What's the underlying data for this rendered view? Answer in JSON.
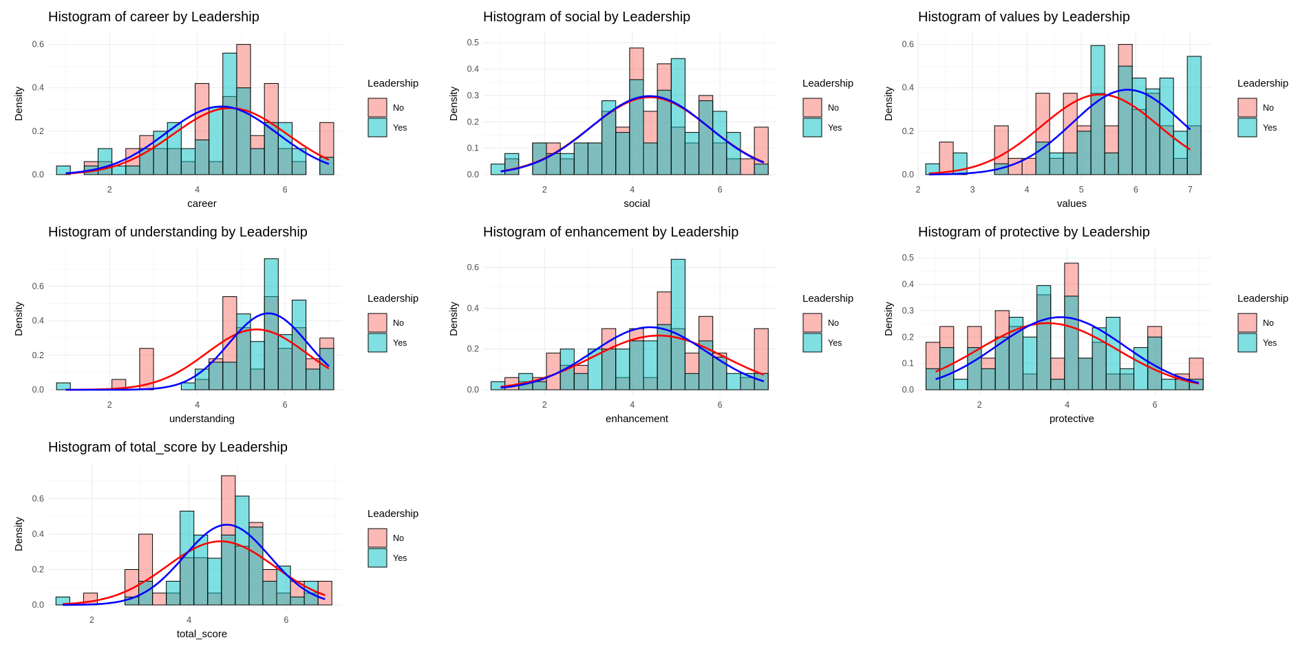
{
  "colors": {
    "no_fill": "#F8766D",
    "yes_fill": "#00BFC4",
    "fill_alpha": 0.5,
    "no_curve": "#FF0000",
    "yes_curve": "#0000FF"
  },
  "legend": {
    "title": "Leadership",
    "items": [
      "No",
      "Yes"
    ]
  },
  "chart_data": [
    {
      "type": "bar",
      "title": "Histogram of career by Leadership",
      "xlabel": "career",
      "ylabel": "Density",
      "xlim": [
        0.6,
        7.3
      ],
      "ylim": [
        0,
        0.62
      ],
      "xticks": [
        2,
        4,
        6
      ],
      "yticks": [
        0.0,
        0.2,
        0.4,
        0.6
      ],
      "bin_start": 0.79,
      "bin_width": 0.316,
      "no": [
        0,
        0,
        0.06,
        0.06,
        0,
        0.12,
        0.18,
        0.12,
        0.12,
        0.06,
        0.42,
        0.06,
        0.36,
        0.6,
        0.18,
        0.42,
        0.12,
        0.06,
        0,
        0.24
      ],
      "yes": [
        0.04,
        0,
        0.04,
        0.12,
        0.04,
        0.04,
        0.12,
        0.2,
        0.24,
        0.12,
        0.16,
        0.31,
        0.56,
        0.4,
        0.12,
        0.24,
        0.24,
        0.12,
        0,
        0.08
      ],
      "no_curve": {
        "mean": 4.75,
        "sd": 1.3,
        "range": [
          1.0,
          7.0
        ]
      },
      "yes_curve": {
        "mean": 4.55,
        "sd": 1.27,
        "range": [
          1.0,
          7.0
        ]
      }
    },
    {
      "type": "bar",
      "title": "Histogram of social by Leadership",
      "xlabel": "social",
      "ylabel": "Density",
      "xlim": [
        0.6,
        7.3
      ],
      "ylim": [
        0,
        0.51
      ],
      "xticks": [
        2,
        4,
        6
      ],
      "yticks": [
        0.0,
        0.1,
        0.2,
        0.3,
        0.4,
        0.5
      ],
      "bin_start": 0.78,
      "bin_width": 0.316,
      "no": [
        0,
        0.06,
        0,
        0.12,
        0.12,
        0.06,
        0.12,
        0.12,
        0.24,
        0.18,
        0.48,
        0.24,
        0.42,
        0.18,
        0.12,
        0.3,
        0.12,
        0.06,
        0.06,
        0.18
      ],
      "yes": [
        0.04,
        0.08,
        0,
        0.12,
        0.08,
        0.08,
        0.12,
        0.12,
        0.28,
        0.16,
        0.36,
        0.12,
        0.32,
        0.44,
        0.16,
        0.28,
        0.24,
        0.16,
        0,
        0.04
      ],
      "no_curve": {
        "mean": 4.4,
        "sd": 1.36,
        "range": [
          1.0,
          7.0
        ]
      },
      "yes_curve": {
        "mean": 4.4,
        "sd": 1.34,
        "range": [
          1.0,
          7.0
        ]
      }
    },
    {
      "type": "bar",
      "title": "Histogram of values by Leadership",
      "xlabel": "values",
      "ylabel": "Density",
      "xlim": [
        2.0,
        7.4
      ],
      "ylim": [
        0,
        0.62
      ],
      "xticks": [
        2,
        3,
        4,
        5,
        6,
        7
      ],
      "yticks": [
        0.0,
        0.2,
        0.4,
        0.6
      ],
      "bin_start": 2.14,
      "bin_width": 0.253,
      "no": [
        0,
        0.15,
        0,
        0,
        0,
        0.225,
        0.075,
        0.075,
        0.375,
        0.075,
        0.375,
        0.225,
        0.375,
        0.225,
        0.6,
        0.3,
        0.375,
        0.225,
        0.075,
        0.225
      ],
      "yes": [
        0.05,
        0,
        0.1,
        0,
        0,
        0.05,
        0,
        0,
        0.15,
        0.1,
        0.1,
        0.2,
        0.595,
        0.1,
        0.5,
        0.445,
        0.395,
        0.445,
        0.2,
        0.545
      ],
      "no_curve": {
        "mean": 5.35,
        "sd": 1.08,
        "range": [
          2.2,
          7.0
        ]
      },
      "yes_curve": {
        "mean": 5.85,
        "sd": 1.02,
        "range": [
          2.2,
          7.0
        ]
      }
    },
    {
      "type": "bar",
      "title": "Histogram of understanding by Leadership",
      "xlabel": "understanding",
      "ylabel": "Density",
      "xlim": [
        0.6,
        7.3
      ],
      "ylim": [
        0,
        0.78
      ],
      "xticks": [
        2,
        4,
        6
      ],
      "yticks": [
        0.0,
        0.2,
        0.4,
        0.6
      ],
      "bin_start": 0.79,
      "bin_width": 0.316,
      "no": [
        0,
        0,
        0,
        0,
        0.06,
        0,
        0.24,
        0,
        0,
        0,
        0.06,
        0.18,
        0.54,
        0.36,
        0.12,
        0.54,
        0.24,
        0.36,
        0.18,
        0.3
      ],
      "yes": [
        0.04,
        0,
        0,
        0,
        0,
        0,
        0,
        0,
        0,
        0.04,
        0.12,
        0.16,
        0.16,
        0.44,
        0.28,
        0.76,
        0.32,
        0.52,
        0.12,
        0.24
      ],
      "no_curve": {
        "mean": 5.35,
        "sd": 1.14,
        "range": [
          1.0,
          7.0
        ]
      },
      "yes_curve": {
        "mean": 5.62,
        "sd": 0.9,
        "range": [
          1.0,
          7.0
        ]
      }
    },
    {
      "type": "bar",
      "title": "Histogram of enhancement by Leadership",
      "xlabel": "enhancement",
      "ylabel": "Density",
      "xlim": [
        0.6,
        7.3
      ],
      "ylim": [
        0,
        0.66
      ],
      "xticks": [
        2,
        4,
        6
      ],
      "yticks": [
        0.0,
        0.2,
        0.4,
        0.6
      ],
      "bin_start": 0.78,
      "bin_width": 0.316,
      "no": [
        0,
        0.06,
        0.04,
        0.06,
        0.18,
        0.12,
        0.12,
        0,
        0.3,
        0.06,
        0.3,
        0.06,
        0.48,
        0.3,
        0.18,
        0.36,
        0.18,
        0,
        0.06,
        0.3
      ],
      "yes": [
        0.04,
        0,
        0.08,
        0.04,
        0,
        0.2,
        0.08,
        0.2,
        0.2,
        0.2,
        0.24,
        0.24,
        0.32,
        0.64,
        0.08,
        0.24,
        0.16,
        0.08,
        0.08,
        0.08
      ],
      "no_curve": {
        "mean": 4.6,
        "sd": 1.5,
        "range": [
          1.0,
          7.0
        ]
      },
      "yes_curve": {
        "mean": 4.4,
        "sd": 1.3,
        "range": [
          1.0,
          7.0
        ]
      }
    },
    {
      "type": "bar",
      "title": "Histogram of protective by Leadership",
      "xlabel": "protective",
      "ylabel": "Density",
      "xlim": [
        0.6,
        7.3
      ],
      "ylim": [
        0,
        0.51
      ],
      "xticks": [
        2,
        4,
        6
      ],
      "yticks": [
        0.0,
        0.1,
        0.2,
        0.3,
        0.4,
        0.5
      ],
      "bin_start": 0.78,
      "bin_width": 0.316,
      "no": [
        0.18,
        0.24,
        0,
        0.24,
        0.12,
        0.3,
        0.24,
        0.06,
        0.36,
        0.12,
        0.48,
        0.12,
        0.18,
        0.06,
        0.06,
        0,
        0.24,
        0,
        0.06,
        0.12
      ],
      "yes": [
        0.08,
        0.16,
        0.04,
        0.16,
        0.08,
        0.2,
        0.275,
        0.2,
        0.395,
        0.04,
        0.355,
        0.12,
        0.235,
        0.275,
        0.08,
        0.16,
        0.2,
        0.04,
        0.04,
        0.04
      ],
      "no_curve": {
        "mean": 3.55,
        "sd": 1.58,
        "range": [
          1.0,
          7.0
        ]
      },
      "yes_curve": {
        "mean": 3.85,
        "sd": 1.45,
        "range": [
          1.0,
          7.0
        ]
      }
    },
    {
      "type": "bar",
      "title": "Histogram of total_score by Leadership",
      "xlabel": "total_score",
      "ylabel": "Density",
      "xlim": [
        1.1,
        7.15
      ],
      "ylim": [
        0,
        0.76
      ],
      "xticks": [
        2,
        4,
        6
      ],
      "yticks": [
        0.0,
        0.2,
        0.4,
        0.6
      ],
      "bin_start": 1.26,
      "bin_width": 0.284,
      "no": [
        0,
        0,
        0.067,
        0,
        0,
        0.2,
        0.4,
        0.067,
        0.067,
        0.267,
        0.267,
        0.067,
        0.73,
        0.332,
        0.466,
        0.2,
        0.067,
        0.134,
        0.067,
        0.134
      ],
      "yes": [
        0.045,
        0,
        0,
        0,
        0,
        0.045,
        0.134,
        0,
        0.134,
        0.53,
        0.395,
        0.264,
        0.395,
        0.615,
        0.44,
        0.134,
        0.22,
        0.045,
        0.134,
        0
      ],
      "no_curve": {
        "mean": 4.65,
        "sd": 1.11,
        "range": [
          1.4,
          6.8
        ]
      },
      "yes_curve": {
        "mean": 4.78,
        "sd": 0.88,
        "range": [
          1.4,
          6.8
        ]
      }
    }
  ]
}
